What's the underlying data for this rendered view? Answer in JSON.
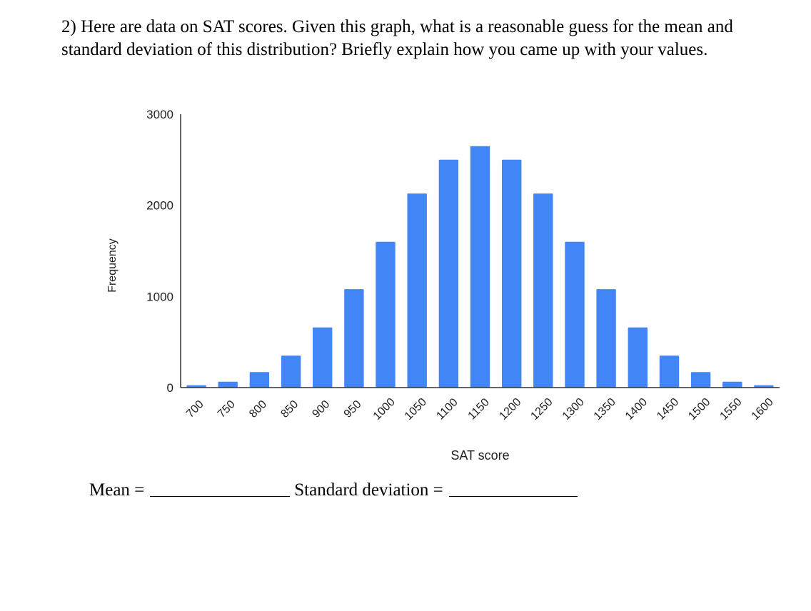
{
  "question": {
    "text": "2) Here are data on SAT scores.  Given this graph, what is a reasonable guess for the mean and standard deviation of this distribution?  Briefly explain how you came up with your values."
  },
  "answers": {
    "mean_label": "Mean =",
    "sd_label": "Standard deviation ="
  },
  "colors": {
    "bar": "#4285f4",
    "axis": "#333333"
  },
  "chart_data": {
    "type": "bar",
    "title": "",
    "xlabel": "SAT score",
    "ylabel": "Frequency",
    "ylim": [
      0,
      3000
    ],
    "yticks": [
      0,
      1000,
      2000,
      3000
    ],
    "categories": [
      "700",
      "750",
      "800",
      "850",
      "900",
      "950",
      "1000",
      "1050",
      "1100",
      "1150",
      "1200",
      "1250",
      "1300",
      "1350",
      "1400",
      "1450",
      "1500",
      "1550",
      "1600"
    ],
    "values": [
      25,
      65,
      170,
      350,
      660,
      1080,
      1600,
      2130,
      2500,
      2650,
      2500,
      2130,
      1600,
      1080,
      660,
      350,
      170,
      65,
      25
    ],
    "grid": false,
    "legend": "none"
  }
}
